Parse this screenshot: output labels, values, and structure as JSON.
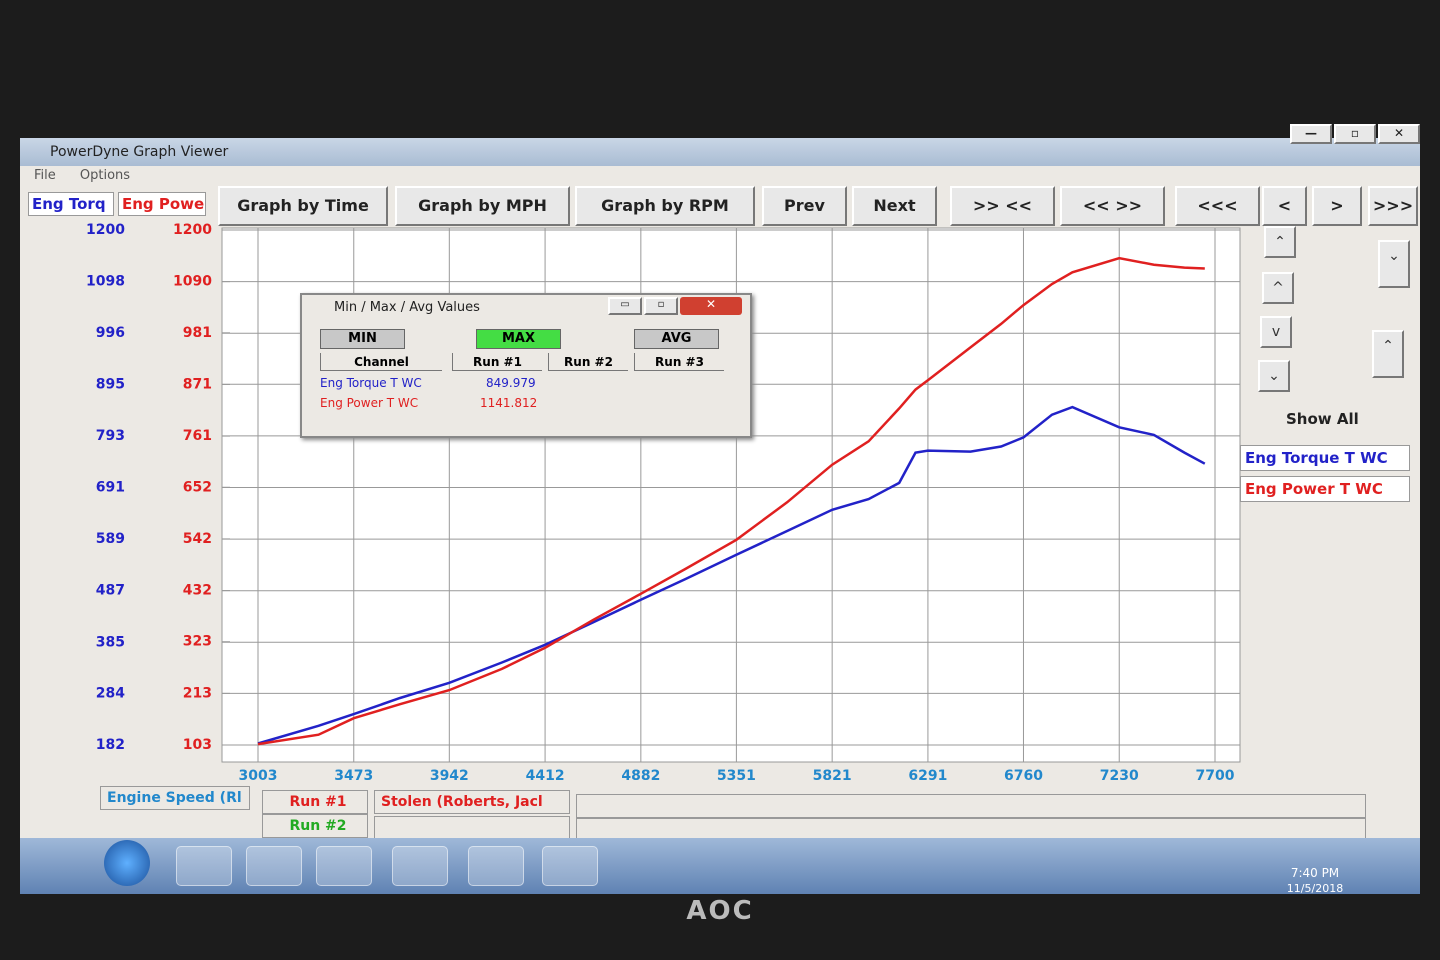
{
  "window": {
    "title": "PowerDyne Graph Viewer",
    "menu": [
      "File",
      "Options"
    ]
  },
  "toolbar": {
    "axis_headers": [
      "Eng Torq",
      "Eng Powe"
    ],
    "buttons": [
      "Graph by Time",
      "Graph by MPH",
      "Graph by RPM",
      "Prev",
      "Next",
      ">> <<",
      "<< >>",
      "<<<",
      "<",
      ">",
      ">>>"
    ]
  },
  "dialog": {
    "title": "Min / Max / Avg Values",
    "tabs": [
      "MIN",
      "MAX",
      "AVG"
    ],
    "columns": [
      "Channel",
      "Run #1",
      "Run #2",
      "Run #3"
    ],
    "rows": [
      [
        "Eng Torque T WC",
        "849.979"
      ],
      [
        "Eng Power T WC",
        "1141.812"
      ]
    ]
  },
  "side_panel": {
    "show_all": "Show All"
  },
  "footer": {
    "x_channel": "Engine Speed (Rl",
    "runs": [
      "Run #1",
      "Run #2"
    ],
    "run_name": "Stolen (Roberts, Jacl"
  },
  "taskbar": {
    "time": "7:40 PM",
    "date": "11/5/2018"
  },
  "monitor_brand": "AOC",
  "chart_data": {
    "type": "line",
    "x": [
      3003,
      3300,
      3473,
      3700,
      3942,
      4200,
      4412,
      4650,
      4882,
      5100,
      5351,
      5600,
      5821,
      6000,
      6150,
      6230,
      6291,
      6500,
      6650,
      6760,
      6900,
      7000,
      7230,
      7400,
      7550,
      7650
    ],
    "series": [
      {
        "name": "Eng Torque T WC",
        "color": "#2222c8",
        "values": [
          185,
          220,
          243,
          275,
          305,
          345,
          380,
          425,
          469,
          510,
          558,
          605,
          647,
          668,
          700,
          760,
          764,
          762,
          772,
          790,
          835,
          850,
          810,
          795,
          760,
          738
        ]
      },
      {
        "name": "Eng Power T WC",
        "color": "#e02020",
        "axis": "y2",
        "values": [
          105,
          125,
          160,
          190,
          220,
          265,
          310,
          370,
          425,
          478,
          540,
          620,
          700,
          750,
          820,
          860,
          880,
          950,
          1000,
          1040,
          1085,
          1110,
          1140,
          1126,
          1120,
          1118
        ]
      }
    ],
    "xlim": [
      3003,
      7700
    ],
    "xticks": [
      3003,
      3473,
      3942,
      4412,
      4882,
      5351,
      5821,
      6291,
      6760,
      7230,
      7700
    ],
    "ylim": [
      182,
      1200
    ],
    "yticks": [
      182,
      284,
      385,
      487,
      589,
      691,
      793,
      895,
      996,
      1098,
      1200
    ],
    "y2lim": [
      103,
      1200
    ],
    "y2ticks": [
      103,
      213,
      323,
      432,
      542,
      652,
      761,
      871,
      981,
      1090,
      1200
    ],
    "grid": true
  }
}
